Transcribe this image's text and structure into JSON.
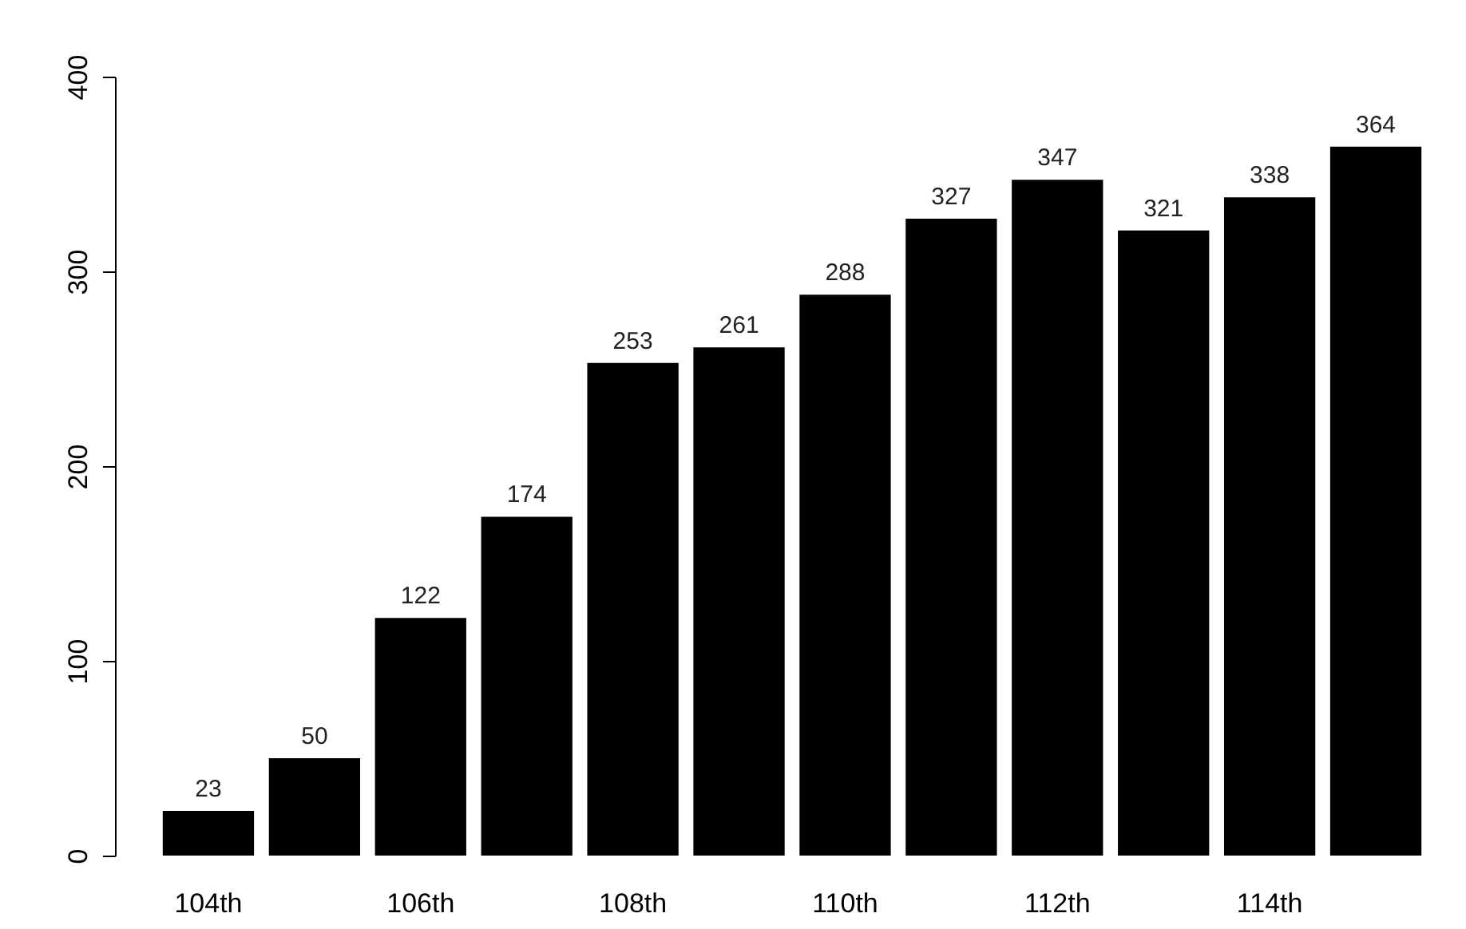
{
  "chart_data": {
    "type": "bar",
    "categories": [
      "104th",
      null,
      "106th",
      null,
      "108th",
      null,
      "110th",
      null,
      "112th",
      null,
      "114th",
      null
    ],
    "values": [
      23,
      50,
      122,
      174,
      253,
      261,
      288,
      327,
      347,
      321,
      338,
      364
    ],
    "color": "#000000",
    "ylim": [
      0,
      400
    ],
    "yticks": [
      0,
      100,
      200,
      300,
      400
    ],
    "grid": false,
    "data_labels": true
  }
}
